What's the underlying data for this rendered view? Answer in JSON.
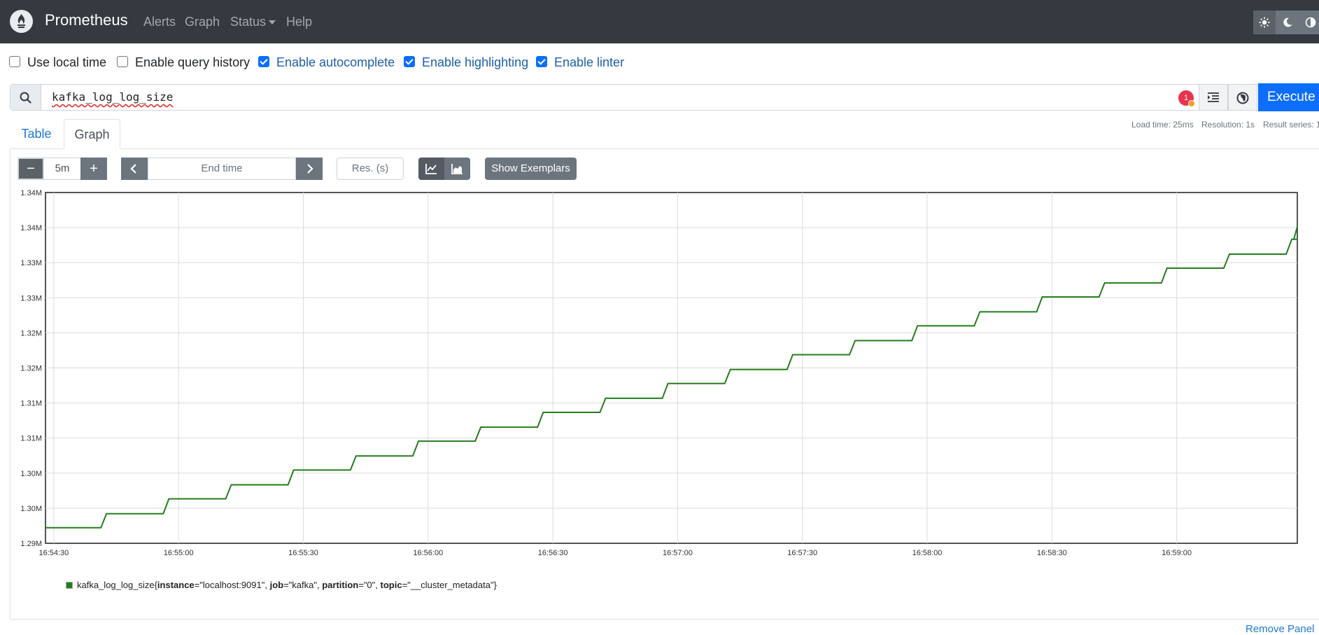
{
  "nav": {
    "brand": "Prometheus",
    "links": [
      "Alerts",
      "Graph",
      "Status",
      "Help"
    ]
  },
  "options": [
    {
      "label": "Use local time",
      "checked": false
    },
    {
      "label": "Enable query history",
      "checked": false
    },
    {
      "label": "Enable autocomplete",
      "checked": true
    },
    {
      "label": "Enable highlighting",
      "checked": true
    },
    {
      "label": "Enable linter",
      "checked": true
    }
  ],
  "query": {
    "value": "kafka_log_log_size",
    "lint_count": "1",
    "execute_label": "Execute"
  },
  "tabs": {
    "table": "Table",
    "graph": "Graph"
  },
  "stats": {
    "load_time": "Load time: 25ms",
    "resolution": "Resolution: 1s",
    "result_series": "Result series: 1"
  },
  "graph_controls": {
    "minus": "−",
    "range": "5m",
    "plus": "+",
    "end_time_placeholder": "End time",
    "res_placeholder": "Res. (s)",
    "show_exemplars": "Show Exemplars"
  },
  "chart_data": {
    "type": "line",
    "series": [
      {
        "name": "kafka_log_log_size{instance=\"localhost:9091\", job=\"kafka\", partition=\"0\", topic=\"__cluster_metadata\"}",
        "color": "#237e1c",
        "steps": [
          {
            "t": "16:54:28",
            "v": 1297000
          },
          {
            "t": "16:54:42",
            "v": 1298800
          },
          {
            "t": "16:54:57",
            "v": 1300700
          },
          {
            "t": "16:55:12",
            "v": 1302500
          },
          {
            "t": "16:55:27",
            "v": 1304400
          },
          {
            "t": "16:55:42",
            "v": 1306200
          },
          {
            "t": "16:55:57",
            "v": 1308100
          },
          {
            "t": "16:56:12",
            "v": 1309900
          },
          {
            "t": "16:56:27",
            "v": 1311800
          },
          {
            "t": "16:56:42",
            "v": 1313600
          },
          {
            "t": "16:56:57",
            "v": 1315500
          },
          {
            "t": "16:57:12",
            "v": 1317300
          },
          {
            "t": "16:57:27",
            "v": 1319200
          },
          {
            "t": "16:57:42",
            "v": 1321000
          },
          {
            "t": "16:57:57",
            "v": 1322900
          },
          {
            "t": "16:58:12",
            "v": 1324700
          },
          {
            "t": "16:58:27",
            "v": 1326600
          },
          {
            "t": "16:58:42",
            "v": 1328400
          },
          {
            "t": "16:58:57",
            "v": 1330300
          },
          {
            "t": "16:59:12",
            "v": 1332100
          },
          {
            "t": "16:59:27",
            "v": 1334000
          },
          {
            "t": "16:59:29",
            "v": 1334000
          }
        ]
      }
    ],
    "x_ticks": [
      "16:54:30",
      "16:55:00",
      "16:55:30",
      "16:56:00",
      "16:56:30",
      "16:57:00",
      "16:57:30",
      "16:58:00",
      "16:58:30",
      "16:59:00"
    ],
    "x_range": [
      "16:54:28",
      "16:59:29"
    ],
    "y_ticks": [
      "1.29M",
      "1.30M",
      "1.30M",
      "1.31M",
      "1.31M",
      "1.32M",
      "1.32M",
      "1.33M",
      "1.33M",
      "1.34M",
      "1.34M"
    ],
    "y_range": [
      1295000,
      1340000
    ],
    "grid": true
  },
  "legend": {
    "metric": "kafka_log_log_size",
    "labels": [
      {
        "key": "instance",
        "value": "\"localhost:9091\""
      },
      {
        "key": "job",
        "value": "\"kafka\""
      },
      {
        "key": "partition",
        "value": "\"0\""
      },
      {
        "key": "topic",
        "value": "\"__cluster_metadata\""
      }
    ]
  },
  "remove_panel": "Remove Panel"
}
